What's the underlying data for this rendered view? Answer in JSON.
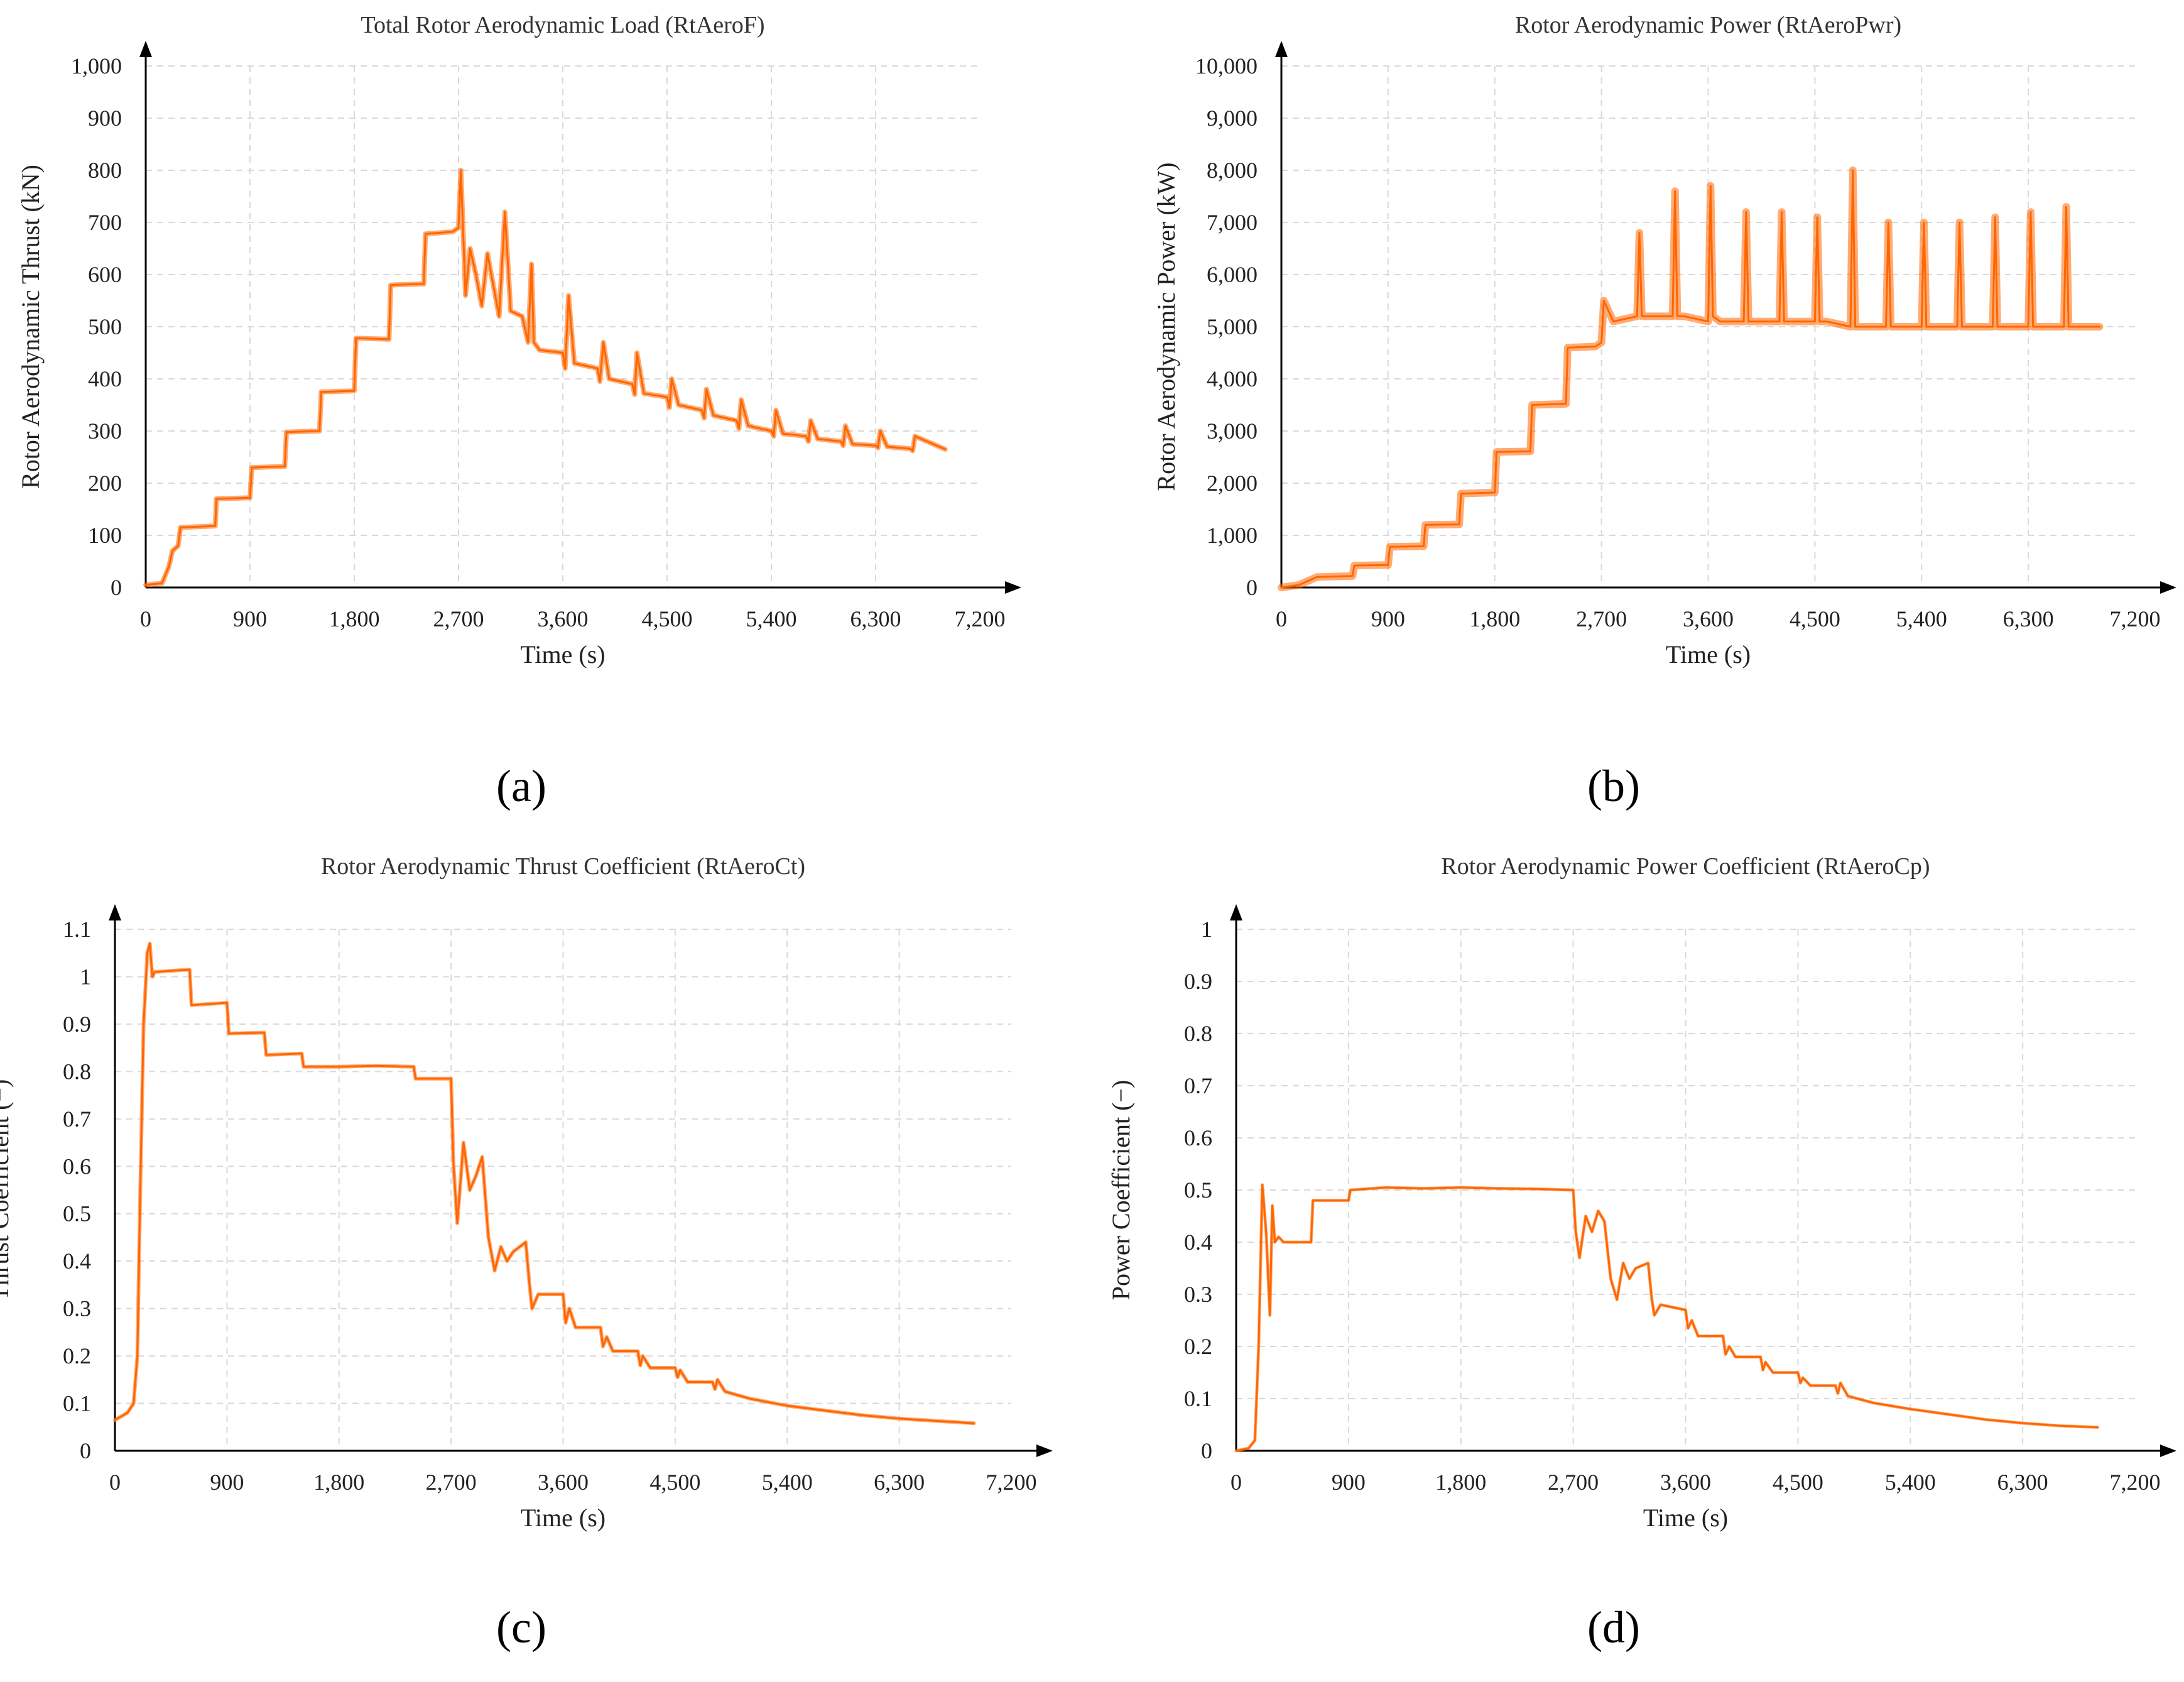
{
  "colors": {
    "series": "#ff6600",
    "axis": "#000000",
    "grid": "#d9d9d9",
    "text": "#222222"
  },
  "chart_data": [
    {
      "id": "a",
      "panel_label": "(a)",
      "type": "line",
      "title": "Total Rotor Aerodynamic Load (RtAeroF)",
      "xlabel": "Time (s)",
      "ylabel": "Rotor Aerodynamic Thrust (kN)",
      "xlim": [
        0,
        7200
      ],
      "ylim": [
        0,
        1000
      ],
      "xticks": [
        0,
        900,
        1800,
        2700,
        3600,
        4500,
        5400,
        6300,
        7200
      ],
      "xtick_labels": [
        "0",
        "900",
        "1,800",
        "2,700",
        "3,600",
        "4,500",
        "5,400",
        "6,300",
        "7,200"
      ],
      "yticks": [
        0,
        100,
        200,
        300,
        400,
        500,
        600,
        700,
        800,
        900,
        1000
      ],
      "ytick_labels": [
        "0",
        "100",
        "200",
        "300",
        "400",
        "500",
        "600",
        "700",
        "800",
        "900",
        "1,000"
      ],
      "series": [
        {
          "name": "RtAeroF",
          "band_width": 8,
          "x": [
            0,
            140,
            200,
            230,
            280,
            300,
            600,
            610,
            900,
            915,
            1200,
            1215,
            1500,
            1515,
            1800,
            1815,
            2100,
            2115,
            2400,
            2415,
            2650,
            2700,
            2720,
            2760,
            2800,
            2850,
            2900,
            2950,
            3000,
            3050,
            3100,
            3150,
            3250,
            3300,
            3330,
            3350,
            3400,
            3600,
            3620,
            3650,
            3700,
            3900,
            3920,
            3950,
            4000,
            4200,
            4220,
            4240,
            4300,
            4500,
            4520,
            4540,
            4600,
            4800,
            4820,
            4840,
            4900,
            5100,
            5120,
            5140,
            5200,
            5400,
            5420,
            5440,
            5500,
            5700,
            5720,
            5740,
            5800,
            6000,
            6020,
            6040,
            6100,
            6300,
            6320,
            6340,
            6400,
            6600,
            6620,
            6640,
            6900
          ],
          "y": [
            5,
            8,
            40,
            70,
            80,
            115,
            118,
            170,
            172,
            230,
            232,
            298,
            300,
            375,
            377,
            478,
            476,
            580,
            582,
            678,
            682,
            690,
            800,
            560,
            650,
            600,
            540,
            640,
            580,
            520,
            720,
            530,
            520,
            470,
            620,
            470,
            455,
            450,
            420,
            560,
            430,
            420,
            395,
            470,
            400,
            390,
            370,
            450,
            372,
            365,
            345,
            400,
            350,
            340,
            325,
            380,
            330,
            320,
            305,
            360,
            310,
            300,
            290,
            340,
            295,
            290,
            280,
            320,
            285,
            280,
            272,
            310,
            275,
            272,
            268,
            300,
            270,
            266,
            262,
            290,
            265
          ]
        }
      ]
    },
    {
      "id": "b",
      "panel_label": "(b)",
      "type": "line",
      "title": "Rotor Aerodynamic Power (RtAeroPwr)",
      "xlabel": "Time (s)",
      "ylabel": "Rotor Aerodynamic Power (kW)",
      "xlim": [
        0,
        7200
      ],
      "ylim": [
        0,
        10000
      ],
      "xticks": [
        0,
        900,
        1800,
        2700,
        3600,
        4500,
        5400,
        6300,
        7200
      ],
      "xtick_labels": [
        "0",
        "900",
        "1,800",
        "2,700",
        "3,600",
        "4,500",
        "5,400",
        "6,300",
        "7,200"
      ],
      "yticks": [
        0,
        1000,
        2000,
        3000,
        4000,
        5000,
        6000,
        7000,
        8000,
        9000,
        10000
      ],
      "ytick_labels": [
        "0",
        "1,000",
        "2,000",
        "3,000",
        "4,000",
        "5,000",
        "6,000",
        "7,000",
        "8,000",
        "9,000",
        "10,000"
      ],
      "series": [
        {
          "name": "RtAeroPwr",
          "band_width": 12,
          "x": [
            0,
            150,
            250,
            300,
            600,
            615,
            900,
            915,
            1200,
            1215,
            1500,
            1515,
            1800,
            1815,
            2100,
            2115,
            2400,
            2415,
            2650,
            2700,
            2720,
            2800,
            3000,
            3020,
            3040,
            3100,
            3300,
            3320,
            3340,
            3400,
            3600,
            3620,
            3640,
            3700,
            3900,
            3920,
            3940,
            4000,
            4200,
            4220,
            4240,
            4300,
            4500,
            4520,
            4540,
            4600,
            4800,
            4820,
            4840,
            4900,
            5100,
            5120,
            5140,
            5200,
            5400,
            5420,
            5440,
            5500,
            5700,
            5720,
            5740,
            5800,
            6000,
            6020,
            6040,
            6100,
            6300,
            6320,
            6340,
            6400,
            6600,
            6620,
            6640,
            6900
          ],
          "y": [
            0,
            50,
            150,
            200,
            220,
            420,
            430,
            780,
            790,
            1200,
            1210,
            1800,
            1820,
            2600,
            2610,
            3500,
            3520,
            4600,
            4620,
            4700,
            5500,
            5100,
            5200,
            6800,
            5200,
            5200,
            5200,
            7600,
            5200,
            5200,
            5100,
            7700,
            5200,
            5100,
            5100,
            7200,
            5100,
            5100,
            5100,
            7200,
            5100,
            5100,
            5100,
            7100,
            5100,
            5100,
            5000,
            8000,
            5000,
            5000,
            5000,
            7000,
            5000,
            5000,
            5000,
            7000,
            5000,
            5000,
            5000,
            7000,
            5000,
            5000,
            5000,
            7100,
            5000,
            5000,
            5000,
            7200,
            5000,
            5000,
            5000,
            7300,
            5000,
            5000
          ]
        }
      ]
    },
    {
      "id": "c",
      "panel_label": "(c)",
      "type": "line",
      "title": "Rotor Aerodynamic Thrust Coefficient (RtAeroCt)",
      "xlabel": "Time (s)",
      "ylabel": "Thrust Coefficient (−)",
      "xlim": [
        0,
        7200
      ],
      "ylim": [
        0,
        1.1
      ],
      "xticks": [
        0,
        900,
        1800,
        2700,
        3600,
        4500,
        5400,
        6300,
        7200
      ],
      "xtick_labels": [
        "0",
        "900",
        "1,800",
        "2,700",
        "3,600",
        "4,500",
        "5,400",
        "6,300",
        "7,200"
      ],
      "yticks": [
        0,
        0.1,
        0.2,
        0.3,
        0.4,
        0.5,
        0.6,
        0.7,
        0.8,
        0.9,
        1.0,
        1.1
      ],
      "ytick_labels": [
        "0",
        "0.1",
        "0.2",
        "0.3",
        "0.4",
        "0.5",
        "0.6",
        "0.7",
        "0.8",
        "0.9",
        "1",
        "1.1"
      ],
      "series": [
        {
          "name": "RtAeroCt",
          "band_width": 6,
          "x": [
            0,
            100,
            150,
            180,
            200,
            230,
            260,
            280,
            300,
            320,
            600,
            615,
            900,
            915,
            1200,
            1215,
            1500,
            1515,
            1800,
            2100,
            2400,
            2415,
            2700,
            2720,
            2750,
            2800,
            2850,
            2900,
            2950,
            3000,
            3050,
            3100,
            3150,
            3200,
            3300,
            3330,
            3350,
            3400,
            3600,
            3620,
            3650,
            3700,
            3900,
            3920,
            3950,
            4000,
            4200,
            4220,
            4240,
            4300,
            4500,
            4520,
            4540,
            4600,
            4800,
            4820,
            4840,
            4900,
            5100,
            5400,
            5700,
            6000,
            6300,
            6600,
            6900
          ],
          "y": [
            0.065,
            0.08,
            0.1,
            0.2,
            0.5,
            0.9,
            1.05,
            1.07,
            1.0,
            1.01,
            1.015,
            0.94,
            0.945,
            0.88,
            0.882,
            0.835,
            0.838,
            0.81,
            0.81,
            0.812,
            0.81,
            0.785,
            0.785,
            0.6,
            0.48,
            0.65,
            0.55,
            0.58,
            0.62,
            0.45,
            0.38,
            0.43,
            0.4,
            0.42,
            0.44,
            0.35,
            0.3,
            0.33,
            0.33,
            0.27,
            0.3,
            0.26,
            0.26,
            0.22,
            0.24,
            0.21,
            0.21,
            0.18,
            0.2,
            0.175,
            0.175,
            0.155,
            0.17,
            0.145,
            0.145,
            0.13,
            0.15,
            0.125,
            0.11,
            0.095,
            0.085,
            0.075,
            0.068,
            0.063,
            0.058
          ]
        }
      ]
    },
    {
      "id": "d",
      "panel_label": "(d)",
      "type": "line",
      "title": "Rotor Aerodynamic Power Coefficient (RtAeroCp)",
      "xlabel": "Time (s)",
      "ylabel": "Power Coefficient (−)",
      "xlim": [
        0,
        7200
      ],
      "ylim": [
        0,
        1
      ],
      "xticks": [
        0,
        900,
        1800,
        2700,
        3600,
        4500,
        5400,
        6300,
        7200
      ],
      "xtick_labels": [
        "0",
        "900",
        "1,800",
        "2,700",
        "3,600",
        "4,500",
        "5,400",
        "6,300",
        "7,200"
      ],
      "yticks": [
        0,
        0.1,
        0.2,
        0.3,
        0.4,
        0.5,
        0.6,
        0.7,
        0.8,
        0.9,
        1.0
      ],
      "ytick_labels": [
        "0",
        "0.1",
        "0.2",
        "0.3",
        "0.4",
        "0.5",
        "0.6",
        "0.7",
        "0.8",
        "0.9",
        "1"
      ],
      "series": [
        {
          "name": "RtAeroCp",
          "band_width": 5,
          "x": [
            0,
            100,
            150,
            180,
            210,
            240,
            270,
            290,
            310,
            340,
            380,
            450,
            600,
            615,
            900,
            915,
            1200,
            1500,
            1800,
            2100,
            2400,
            2700,
            2720,
            2750,
            2800,
            2850,
            2900,
            2950,
            3000,
            3050,
            3100,
            3150,
            3200,
            3300,
            3330,
            3350,
            3400,
            3600,
            3620,
            3650,
            3700,
            3900,
            3920,
            3950,
            4000,
            4200,
            4220,
            4240,
            4300,
            4500,
            4520,
            4540,
            4600,
            4800,
            4820,
            4840,
            4900,
            5100,
            5400,
            5700,
            6000,
            6300,
            6600,
            6900
          ],
          "y": [
            0,
            0.005,
            0.02,
            0.2,
            0.51,
            0.42,
            0.26,
            0.47,
            0.4,
            0.41,
            0.4,
            0.4,
            0.4,
            0.48,
            0.48,
            0.5,
            0.505,
            0.503,
            0.505,
            0.503,
            0.502,
            0.5,
            0.42,
            0.37,
            0.45,
            0.42,
            0.46,
            0.44,
            0.33,
            0.29,
            0.36,
            0.33,
            0.35,
            0.36,
            0.29,
            0.26,
            0.28,
            0.27,
            0.235,
            0.25,
            0.22,
            0.22,
            0.185,
            0.2,
            0.18,
            0.18,
            0.155,
            0.17,
            0.15,
            0.15,
            0.13,
            0.14,
            0.125,
            0.125,
            0.11,
            0.13,
            0.105,
            0.092,
            0.08,
            0.07,
            0.06,
            0.053,
            0.048,
            0.045
          ]
        }
      ]
    }
  ]
}
